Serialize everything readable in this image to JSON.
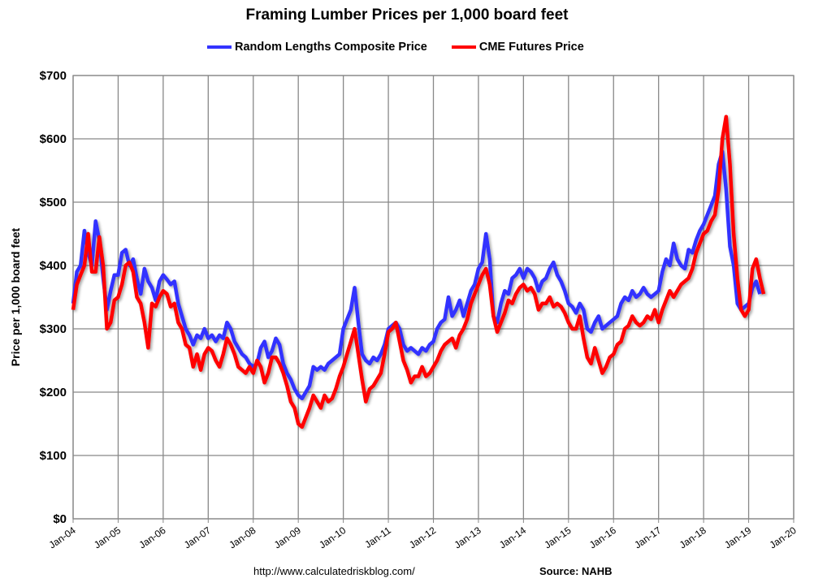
{
  "chart_data": {
    "type": "line",
    "title": "Framing Lumber Prices per 1,000 board feet",
    "ylabel": "Price per 1,000 board feet",
    "xlabel": "",
    "ylim": [
      0,
      700
    ],
    "yticks": [
      "$0",
      "$100",
      "$200",
      "$300",
      "$400",
      "$500",
      "$600",
      "$700"
    ],
    "xticks": [
      "Jan-04",
      "Jan-05",
      "Jan-06",
      "Jan-07",
      "Jan-08",
      "Jan-09",
      "Jan-10",
      "Jan-11",
      "Jan-12",
      "Jan-13",
      "Jan-14",
      "Jan-15",
      "Jan-16",
      "Jan-17",
      "Jan-18",
      "Jan-19",
      "Jan-20"
    ],
    "xlim": [
      "2004-01",
      "2020-01"
    ],
    "grid": true,
    "legend_position": "top",
    "x_start": "2004-01",
    "x_frequency": "monthly",
    "series": [
      {
        "name": "Random Lengths Composite Price",
        "color": "#3333ff",
        "values": [
          340,
          390,
          400,
          455,
          420,
          400,
          470,
          440,
          380,
          330,
          360,
          385,
          385,
          420,
          425,
          400,
          410,
          380,
          355,
          395,
          375,
          365,
          345,
          375,
          385,
          378,
          370,
          375,
          340,
          320,
          300,
          290,
          275,
          290,
          285,
          300,
          285,
          290,
          280,
          290,
          285,
          310,
          300,
          280,
          270,
          260,
          255,
          245,
          240,
          245,
          270,
          280,
          255,
          265,
          285,
          275,
          245,
          230,
          220,
          205,
          195,
          190,
          200,
          210,
          240,
          235,
          240,
          235,
          245,
          250,
          255,
          260,
          300,
          315,
          330,
          365,
          310,
          260,
          250,
          245,
          255,
          250,
          260,
          275,
          300,
          305,
          310,
          300,
          275,
          265,
          270,
          265,
          260,
          270,
          265,
          275,
          280,
          300,
          310,
          315,
          350,
          320,
          330,
          345,
          320,
          340,
          360,
          370,
          395,
          405,
          450,
          410,
          320,
          310,
          340,
          360,
          355,
          380,
          385,
          395,
          380,
          395,
          390,
          380,
          360,
          375,
          380,
          395,
          405,
          385,
          375,
          360,
          340,
          335,
          325,
          340,
          330,
          300,
          295,
          310,
          320,
          300,
          305,
          310,
          315,
          320,
          340,
          350,
          345,
          360,
          350,
          355,
          365,
          355,
          350,
          355,
          360,
          390,
          410,
          400,
          435,
          410,
          400,
          395,
          425,
          420,
          440,
          455,
          465,
          480,
          495,
          510,
          560,
          580,
          520,
          430,
          400,
          340,
          330,
          335,
          340,
          365,
          375,
          355
        ]
      },
      {
        "name": "CME Futures Price",
        "color": "#ff0000",
        "values": [
          330,
          370,
          385,
          400,
          450,
          390,
          390,
          445,
          400,
          300,
          310,
          345,
          350,
          370,
          400,
          405,
          390,
          350,
          340,
          310,
          270,
          340,
          335,
          350,
          360,
          355,
          335,
          340,
          310,
          300,
          275,
          270,
          240,
          260,
          235,
          260,
          270,
          265,
          250,
          240,
          260,
          285,
          275,
          260,
          240,
          235,
          230,
          240,
          230,
          250,
          240,
          215,
          230,
          255,
          255,
          245,
          230,
          210,
          185,
          175,
          150,
          145,
          160,
          175,
          195,
          185,
          175,
          195,
          185,
          190,
          205,
          225,
          240,
          260,
          280,
          300,
          260,
          220,
          185,
          205,
          210,
          220,
          230,
          260,
          295,
          300,
          310,
          280,
          250,
          235,
          215,
          225,
          225,
          240,
          225,
          230,
          240,
          250,
          265,
          275,
          280,
          285,
          270,
          290,
          300,
          315,
          340,
          355,
          370,
          385,
          395,
          370,
          320,
          295,
          310,
          325,
          345,
          340,
          355,
          365,
          370,
          360,
          365,
          355,
          330,
          340,
          340,
          350,
          335,
          340,
          335,
          325,
          310,
          300,
          300,
          320,
          285,
          255,
          245,
          270,
          250,
          230,
          240,
          255,
          260,
          275,
          280,
          300,
          305,
          320,
          310,
          305,
          310,
          320,
          315,
          330,
          310,
          330,
          345,
          360,
          350,
          360,
          370,
          375,
          380,
          395,
          420,
          435,
          450,
          455,
          470,
          480,
          520,
          600,
          635,
          560,
          450,
          380,
          330,
          320,
          330,
          395,
          410,
          380,
          355
        ]
      }
    ]
  },
  "footer": {
    "url": "http://www.calculatedriskblog.com/",
    "source": "Source: NAHB"
  }
}
